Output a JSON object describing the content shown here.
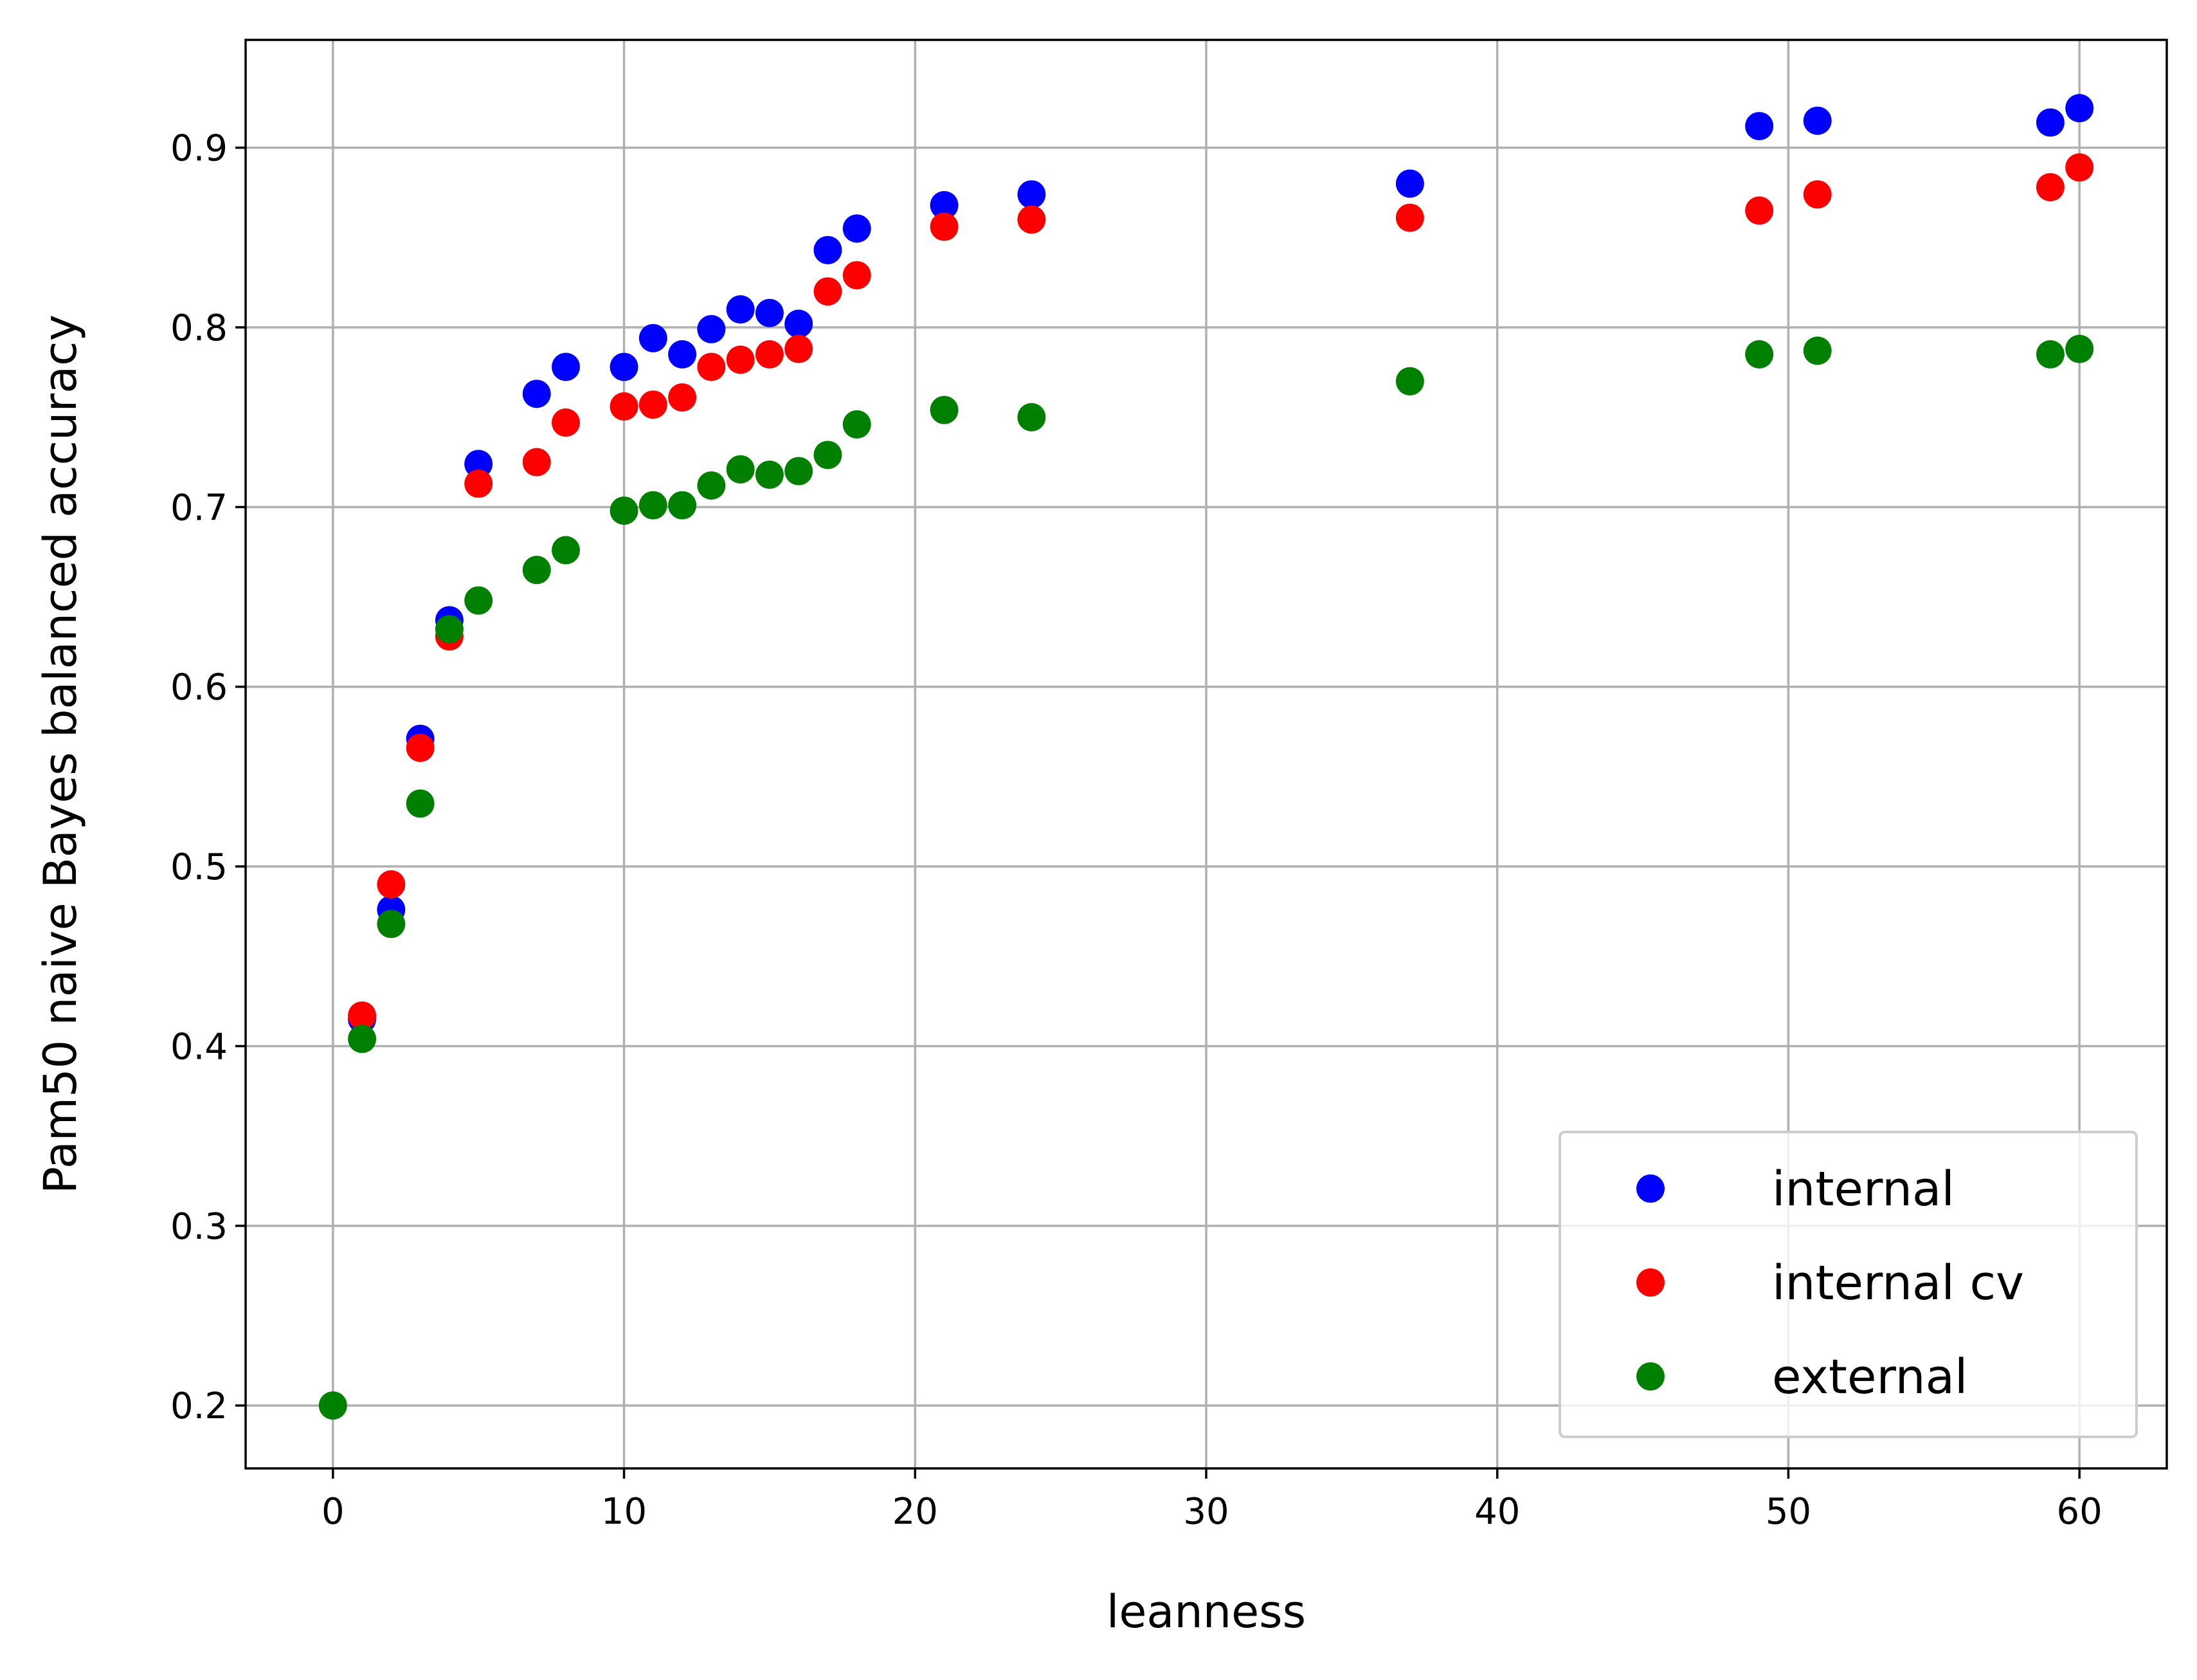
{
  "chart_data": {
    "type": "scatter",
    "xlabel": "leanness",
    "ylabel": "Pam50 naive Bayes balanced accuracy",
    "xlim": [
      -3,
      63
    ],
    "ylim": [
      0.165,
      0.96
    ],
    "xticks": [
      0,
      10,
      20,
      30,
      40,
      50,
      60
    ],
    "yticks": [
      0.2,
      0.3,
      0.4,
      0.5,
      0.6,
      0.7,
      0.8,
      0.9
    ],
    "xtick_labels": [
      "0",
      "10",
      "20",
      "30",
      "40",
      "50",
      "60"
    ],
    "ytick_labels": [
      "0.2",
      "0.3",
      "0.4",
      "0.5",
      "0.6",
      "0.7",
      "0.8",
      "0.9"
    ],
    "grid": true,
    "legend_position": "lower right",
    "series": [
      {
        "name": "internal",
        "color": "#0000ff",
        "x": [
          1,
          2,
          3,
          4,
          5,
          7,
          8,
          10,
          11,
          12,
          13,
          14,
          15,
          16,
          17,
          18,
          21,
          24,
          37,
          49,
          51,
          59,
          60
        ],
        "y": [
          0.415,
          0.476,
          0.571,
          0.637,
          0.724,
          0.763,
          0.778,
          0.778,
          0.794,
          0.785,
          0.799,
          0.81,
          0.808,
          0.802,
          0.843,
          0.855,
          0.868,
          0.874,
          0.88,
          0.912,
          0.915,
          0.914,
          0.922
        ]
      },
      {
        "name": "internal cv",
        "color": "#ff0000",
        "x": [
          1,
          2,
          3,
          4,
          5,
          7,
          8,
          10,
          11,
          12,
          13,
          14,
          15,
          16,
          17,
          18,
          21,
          24,
          37,
          49,
          51,
          59,
          60
        ],
        "y": [
          0.417,
          0.49,
          0.566,
          0.628,
          0.713,
          0.725,
          0.747,
          0.756,
          0.757,
          0.761,
          0.778,
          0.782,
          0.785,
          0.788,
          0.82,
          0.829,
          0.856,
          0.86,
          0.861,
          0.865,
          0.874,
          0.878,
          0.889
        ]
      },
      {
        "name": "external",
        "color": "#008000",
        "x": [
          0,
          1,
          2,
          3,
          4,
          5,
          7,
          8,
          10,
          11,
          12,
          13,
          14,
          15,
          16,
          17,
          18,
          21,
          24,
          37,
          49,
          51,
          59,
          60
        ],
        "y": [
          0.2,
          0.404,
          0.468,
          0.535,
          0.632,
          0.648,
          0.665,
          0.676,
          0.698,
          0.701,
          0.701,
          0.712,
          0.721,
          0.718,
          0.72,
          0.729,
          0.746,
          0.754,
          0.75,
          0.77,
          0.785,
          0.787,
          0.785,
          0.788
        ]
      }
    ]
  }
}
